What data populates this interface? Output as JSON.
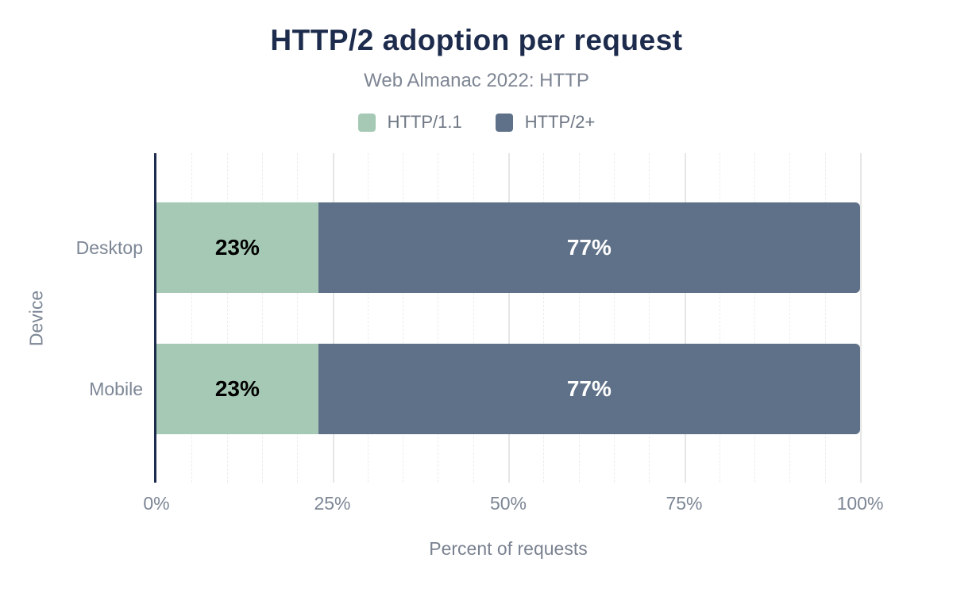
{
  "chart_data": {
    "type": "bar",
    "orientation": "horizontal",
    "stacked": true,
    "title": "HTTP/2 adoption per request",
    "subtitle": "Web Almanac 2022: HTTP",
    "xlabel": "Percent of requests",
    "ylabel": "Device",
    "categories": [
      "Desktop",
      "Mobile"
    ],
    "series": [
      {
        "name": "HTTP/1.1",
        "color": "#a5c9b4",
        "label_color": "#000000",
        "values": [
          23,
          23
        ]
      },
      {
        "name": "HTTP/2+",
        "color": "#5f7188",
        "label_color": "#ffffff",
        "values": [
          77,
          77
        ]
      }
    ],
    "data_labels": [
      [
        "23%",
        "77%"
      ],
      [
        "23%",
        "77%"
      ]
    ],
    "xlim": [
      0,
      100
    ],
    "x_ticks": [
      {
        "value": 0,
        "label": "0%"
      },
      {
        "value": 25,
        "label": "25%"
      },
      {
        "value": 50,
        "label": "50%"
      },
      {
        "value": 75,
        "label": "75%"
      },
      {
        "value": 100,
        "label": "100%"
      }
    ],
    "grid": {
      "minor_every": 5,
      "major_every": 25,
      "direction": "vertical"
    },
    "legend_position": "top"
  },
  "colors": {
    "title": "#1d2b4c",
    "subtitle": "#7e8694",
    "axis_line": "#1d2b4c",
    "tick_label": "#7c8695",
    "gridline_major": "#e6e6e6",
    "gridline_minor": "#ececec",
    "background": "#ffffff"
  }
}
